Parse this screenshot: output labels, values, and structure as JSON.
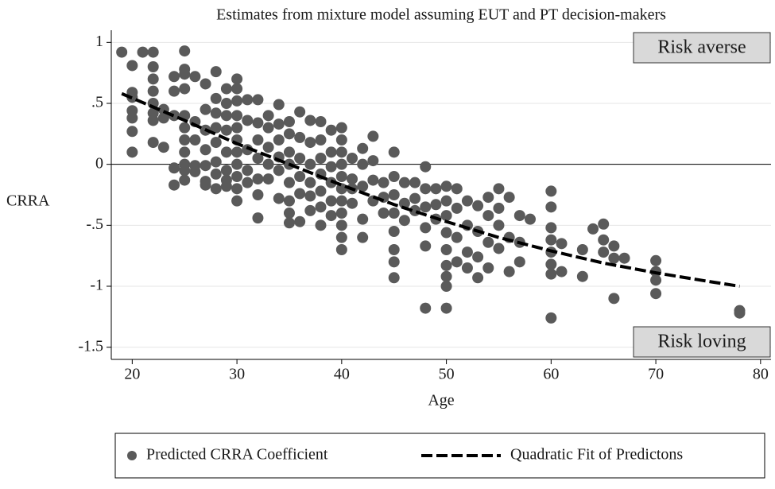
{
  "chart_data": {
    "type": "scatter",
    "title": "Estimates from mixture model assuming EUT and PT decision-makers",
    "x_label": "Age",
    "y_label": "CRRA",
    "xlim": [
      18,
      81
    ],
    "ylim": [
      -1.6,
      1.1
    ],
    "xticks": [
      20,
      30,
      40,
      50,
      60,
      70,
      80
    ],
    "yticks": [
      1,
      {
        "value": 0.5,
        "label": ".5"
      },
      0,
      {
        "value": -0.5,
        "label": "-.5"
      },
      -1,
      -1.5
    ],
    "grid": true,
    "hline": 0,
    "legend": "bottom",
    "annotations": [
      {
        "text": "Risk averse",
        "position": "top-right"
      },
      {
        "text": "Risk loving",
        "position": "bottom-right"
      }
    ],
    "series": [
      {
        "name": "Predicted CRRA Coefficient",
        "type": "scatter",
        "color": "#5a5a5a",
        "x": [
          19,
          20,
          20,
          20,
          20,
          20,
          20,
          20,
          21,
          22,
          22,
          22,
          22,
          22,
          22,
          22,
          22,
          23,
          23,
          23,
          24,
          24,
          24,
          24,
          24,
          25,
          25,
          25,
          25,
          25,
          25,
          25,
          25,
          25,
          25,
          25,
          26,
          26,
          26,
          26,
          26,
          27,
          27,
          27,
          27,
          27,
          27,
          27,
          28,
          28,
          28,
          28,
          28,
          28,
          28,
          28,
          29,
          29,
          29,
          29,
          29,
          29,
          29,
          29,
          30,
          30,
          30,
          30,
          30,
          30,
          30,
          30,
          30,
          30,
          30,
          31,
          31,
          31,
          31,
          31,
          32,
          32,
          32,
          32,
          32,
          32,
          32,
          33,
          33,
          33,
          33,
          33,
          34,
          34,
          34,
          34,
          34,
          34,
          35,
          35,
          35,
          35,
          35,
          35,
          35,
          35,
          36,
          36,
          36,
          36,
          36,
          36,
          37,
          37,
          37,
          37,
          37,
          37,
          38,
          38,
          38,
          38,
          38,
          38,
          38,
          39,
          39,
          39,
          39,
          39,
          39,
          40,
          40,
          40,
          40,
          40,
          40,
          40,
          40,
          40,
          40,
          40,
          41,
          41,
          41,
          41,
          42,
          42,
          42,
          42,
          42,
          43,
          43,
          43,
          43,
          44,
          44,
          44,
          45,
          45,
          45,
          45,
          45,
          45,
          45,
          45,
          46,
          46,
          46,
          47,
          47,
          47,
          48,
          48,
          48,
          48,
          48,
          48,
          49,
          49,
          49,
          50,
          50,
          50,
          50,
          50,
          50,
          50,
          50,
          50,
          51,
          51,
          51,
          51,
          52,
          52,
          52,
          52,
          53,
          53,
          53,
          53,
          54,
          54,
          54,
          54,
          55,
          55,
          55,
          55,
          56,
          56,
          56,
          57,
          57,
          57,
          58,
          60,
          60,
          60,
          60,
          60,
          60,
          60,
          60,
          61,
          61,
          63,
          63,
          64,
          65,
          65,
          65,
          66,
          66,
          66,
          67,
          70,
          70,
          70,
          70,
          78,
          78
        ],
        "values": [
          0.92,
          0.81,
          0.59,
          0.55,
          0.44,
          0.38,
          0.27,
          0.1,
          0.92,
          0.92,
          0.8,
          0.7,
          0.6,
          0.5,
          0.42,
          0.36,
          0.18,
          0.45,
          0.38,
          0.14,
          0.72,
          0.6,
          0.4,
          -0.03,
          -0.17,
          0.93,
          0.78,
          0.74,
          0.62,
          0.4,
          0.3,
          0.2,
          0.1,
          0,
          -0.05,
          -0.13,
          0.72,
          0.35,
          0.2,
          -0.01,
          -0.06,
          0.66,
          0.45,
          0.28,
          0.12,
          -0.01,
          -0.14,
          -0.17,
          0.76,
          0.54,
          0.42,
          0.3,
          0.18,
          0.02,
          -0.08,
          -0.2,
          0.62,
          0.5,
          0.4,
          0.28,
          0.1,
          -0.05,
          -0.13,
          -0.18,
          0.7,
          0.62,
          0.52,
          0.4,
          0.3,
          0.2,
          0.1,
          0,
          -0.1,
          -0.2,
          -0.3,
          0.53,
          0.36,
          0.12,
          -0.05,
          -0.15,
          0.53,
          0.34,
          0.2,
          0.05,
          -0.12,
          -0.25,
          -0.44,
          0.4,
          0.3,
          0.14,
          0,
          -0.12,
          0.49,
          0.33,
          0.2,
          0.06,
          -0.05,
          -0.28,
          0.35,
          0.25,
          0.1,
          0,
          -0.15,
          -0.3,
          -0.4,
          -0.48,
          0.43,
          0.22,
          0.05,
          -0.1,
          -0.24,
          -0.47,
          0.36,
          0.18,
          0,
          -0.15,
          -0.26,
          -0.38,
          0.35,
          0.2,
          0.05,
          -0.08,
          -0.22,
          -0.35,
          -0.5,
          0.28,
          0.1,
          -0.02,
          -0.15,
          -0.3,
          -0.42,
          0.3,
          0.2,
          0.1,
          0,
          -0.1,
          -0.2,
          -0.3,
          -0.4,
          -0.5,
          -0.6,
          -0.7,
          0.05,
          -0.12,
          -0.2,
          -0.32,
          0.13,
          0,
          -0.18,
          -0.45,
          -0.6,
          0.23,
          0.03,
          -0.13,
          -0.3,
          -0.15,
          -0.27,
          -0.4,
          0.1,
          -0.1,
          -0.25,
          -0.4,
          -0.55,
          -0.7,
          -0.8,
          -0.93,
          -0.15,
          -0.32,
          -0.46,
          -0.15,
          -0.28,
          -0.38,
          -0.02,
          -0.2,
          -0.35,
          -0.52,
          -0.67,
          -1.18,
          -0.2,
          -0.33,
          -0.45,
          -0.18,
          -0.3,
          -0.42,
          -0.56,
          -0.7,
          -0.83,
          -0.92,
          -1,
          -1.18,
          -0.2,
          -0.36,
          -0.6,
          -0.8,
          -0.3,
          -0.5,
          -0.72,
          -0.85,
          -0.34,
          -0.55,
          -0.76,
          -0.93,
          -0.27,
          -0.42,
          -0.64,
          -0.85,
          -0.2,
          -0.36,
          -0.5,
          -0.69,
          -0.27,
          -0.6,
          -0.88,
          -0.42,
          -0.64,
          -0.8,
          -0.45,
          -0.22,
          -0.35,
          -0.52,
          -0.62,
          -0.72,
          -0.82,
          -0.9,
          -1.26,
          -0.65,
          -0.88,
          -0.7,
          -0.92,
          -0.53,
          -0.49,
          -0.62,
          -0.72,
          -0.67,
          -0.77,
          -1.1,
          -0.77,
          -0.79,
          -0.88,
          -0.95,
          -1.06,
          -1.2,
          -1.22
        ]
      },
      {
        "name": "Quadratic Fit of Predictons",
        "type": "line",
        "dashed": true,
        "color": "#000000",
        "x": [
          19,
          25,
          30,
          35,
          40,
          45,
          50,
          55,
          60,
          65,
          70,
          75,
          78
        ],
        "values": [
          0.58,
          0.36,
          0.17,
          0.0,
          -0.17,
          -0.33,
          -0.47,
          -0.6,
          -0.71,
          -0.81,
          -0.89,
          -0.96,
          -1.0
        ]
      }
    ]
  }
}
